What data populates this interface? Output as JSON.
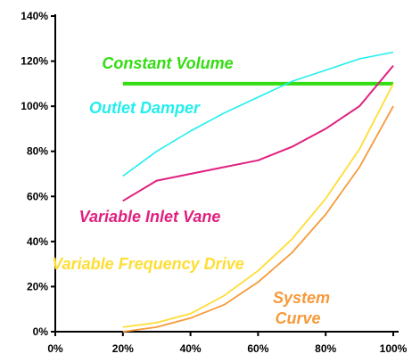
{
  "chart_data": {
    "type": "line",
    "title": "",
    "xlabel": "",
    "ylabel": "",
    "xlim": [
      0,
      100
    ],
    "ylim": [
      0,
      140
    ],
    "grid": false,
    "x_ticks": [
      "0%",
      "20%",
      "40%",
      "60%",
      "80%",
      "100%"
    ],
    "y_ticks": [
      "0%",
      "20%",
      "40%",
      "60%",
      "80%",
      "100%",
      "120%",
      "140%"
    ],
    "series": [
      {
        "name": "Constant Volume",
        "color": "#33dd11",
        "x": [
          20,
          100
        ],
        "y": [
          110,
          110
        ]
      },
      {
        "name": "Outlet Damper",
        "color": "#22eeee",
        "x": [
          20,
          30,
          40,
          50,
          60,
          70,
          80,
          90,
          100
        ],
        "y": [
          69,
          80,
          89,
          97,
          104,
          111,
          116,
          121,
          124
        ]
      },
      {
        "name": "Variable Inlet Vane",
        "color": "#e0207f",
        "x": [
          20,
          30,
          40,
          50,
          60,
          70,
          80,
          90,
          100
        ],
        "y": [
          58,
          67,
          70,
          73,
          76,
          82,
          90,
          100,
          118
        ]
      },
      {
        "name": "Variable Frequency Drive",
        "color": "#ffdd33",
        "x": [
          20,
          30,
          40,
          50,
          60,
          70,
          80,
          90,
          100
        ],
        "y": [
          2,
          4,
          8,
          16,
          27,
          41,
          59,
          81,
          110
        ]
      },
      {
        "name": "System Curve",
        "color": "#f79a3a",
        "x": [
          20,
          30,
          40,
          50,
          60,
          70,
          80,
          90,
          100
        ],
        "y": [
          0,
          2,
          6,
          12,
          22,
          35,
          52,
          73,
          100
        ]
      }
    ],
    "annotations": [
      {
        "text": "Constant Volume",
        "series": 0
      },
      {
        "text": "Outlet Damper",
        "series": 1
      },
      {
        "text": "Variable Inlet Vane",
        "series": 2
      },
      {
        "text": "Variable Frequency Drive",
        "series": 3
      },
      {
        "text": "System",
        "series": 4
      },
      {
        "text": "Curve",
        "series": 4
      }
    ]
  }
}
